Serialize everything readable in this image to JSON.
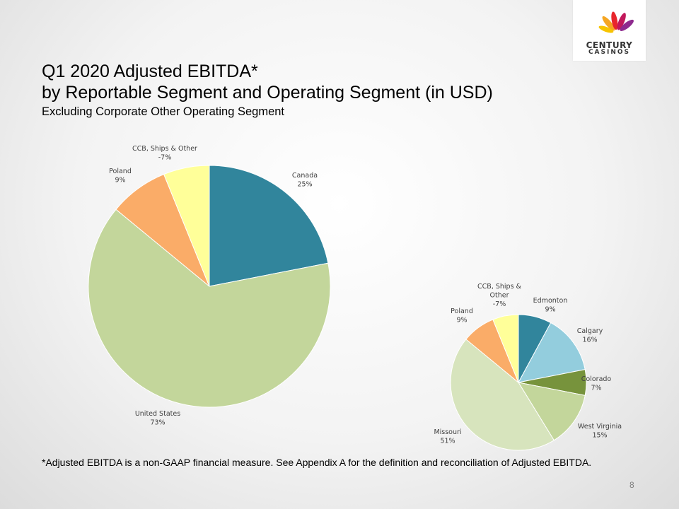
{
  "slide": {
    "title_line1": "Q1 2020 Adjusted EBITDA*",
    "title_line2": "by Reportable Segment and Operating Segment (in USD)",
    "subtitle": "Excluding Corporate Other Operating Segment",
    "footnote": "*Adjusted EBITDA is a non-GAAP financial measure. See Appendix A for the definition and reconciliation of Adjusted EBITDA.",
    "page_number": "8"
  },
  "logo": {
    "line1": "CENTURY",
    "line2": "CASINOS"
  },
  "chart_data": [
    {
      "type": "pie",
      "title": "",
      "slices": [
        {
          "name": "Canada",
          "label": "25%",
          "value": 25,
          "color": "#31859C"
        },
        {
          "name": "United States",
          "label": "73%",
          "value": 73,
          "color": "#C3D69B"
        },
        {
          "name": "Poland",
          "label": "9%",
          "value": 9,
          "color": "#FAAC68"
        },
        {
          "name": "CCB, Ships & Other",
          "label": "-7%",
          "value": -7,
          "color": "#FFFF99"
        }
      ]
    },
    {
      "type": "pie",
      "title": "",
      "slices": [
        {
          "name": "Edmonton",
          "label": "9%",
          "value": 9,
          "color": "#31859C"
        },
        {
          "name": "Calgary",
          "label": "16%",
          "value": 16,
          "color": "#93CDDD"
        },
        {
          "name": "Colorado",
          "label": "7%",
          "value": 7,
          "color": "#77933C"
        },
        {
          "name": "West Virginia",
          "label": "15%",
          "value": 15,
          "color": "#C3D69B"
        },
        {
          "name": "Missouri",
          "label": "51%",
          "value": 51,
          "color": "#D7E4BD"
        },
        {
          "name": "Poland",
          "label": "9%",
          "value": 9,
          "color": "#FAAC68"
        },
        {
          "name": "CCB, Ships & Other",
          "label": "-7%",
          "value": -7,
          "color": "#FFFF99"
        }
      ]
    }
  ]
}
